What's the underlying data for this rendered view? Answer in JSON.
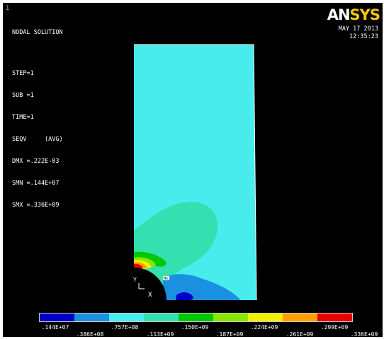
{
  "window": {
    "number": "1"
  },
  "info": {
    "title": "NODAL SOLUTION",
    "lines": [
      "STEP=1",
      "SUB =1",
      "TIME=1",
      "SEQV     (AVG)",
      "DMX =.222E-03",
      "SMN =.144E+07",
      "SMX =.336E+09"
    ]
  },
  "logo": {
    "part1": "AN",
    "part2": "SYS"
  },
  "datetime": {
    "date": "MAY 17 2013",
    "time": "12:35:23"
  },
  "triad": {
    "y_label": "Y",
    "x_label": "X"
  },
  "legend": {
    "colors": [
      "#0000c8",
      "#1a90e0",
      "#48ecec",
      "#34e0b0",
      "#00c800",
      "#86e800",
      "#f0f000",
      "#ffa000",
      "#e80000"
    ],
    "values_top": [
      ".144E+07",
      ".757E+08",
      ".150E+09",
      ".224E+09",
      ".299E+09"
    ],
    "values_bottom": [
      ".386E+08",
      ".113E+09",
      ".187E+09",
      ".261E+09",
      ".336E+09"
    ]
  },
  "contour_colors": {
    "background_band": "#48ecec",
    "mid_band": "#34e0b0",
    "high_band": "#00c800",
    "low_band": "#1a90e0",
    "min_band": "#0000c8",
    "yellow_band": "#f0f000",
    "orange_band": "#ffa000",
    "red_band": "#e80000",
    "yellow_green_band": "#86e800"
  }
}
